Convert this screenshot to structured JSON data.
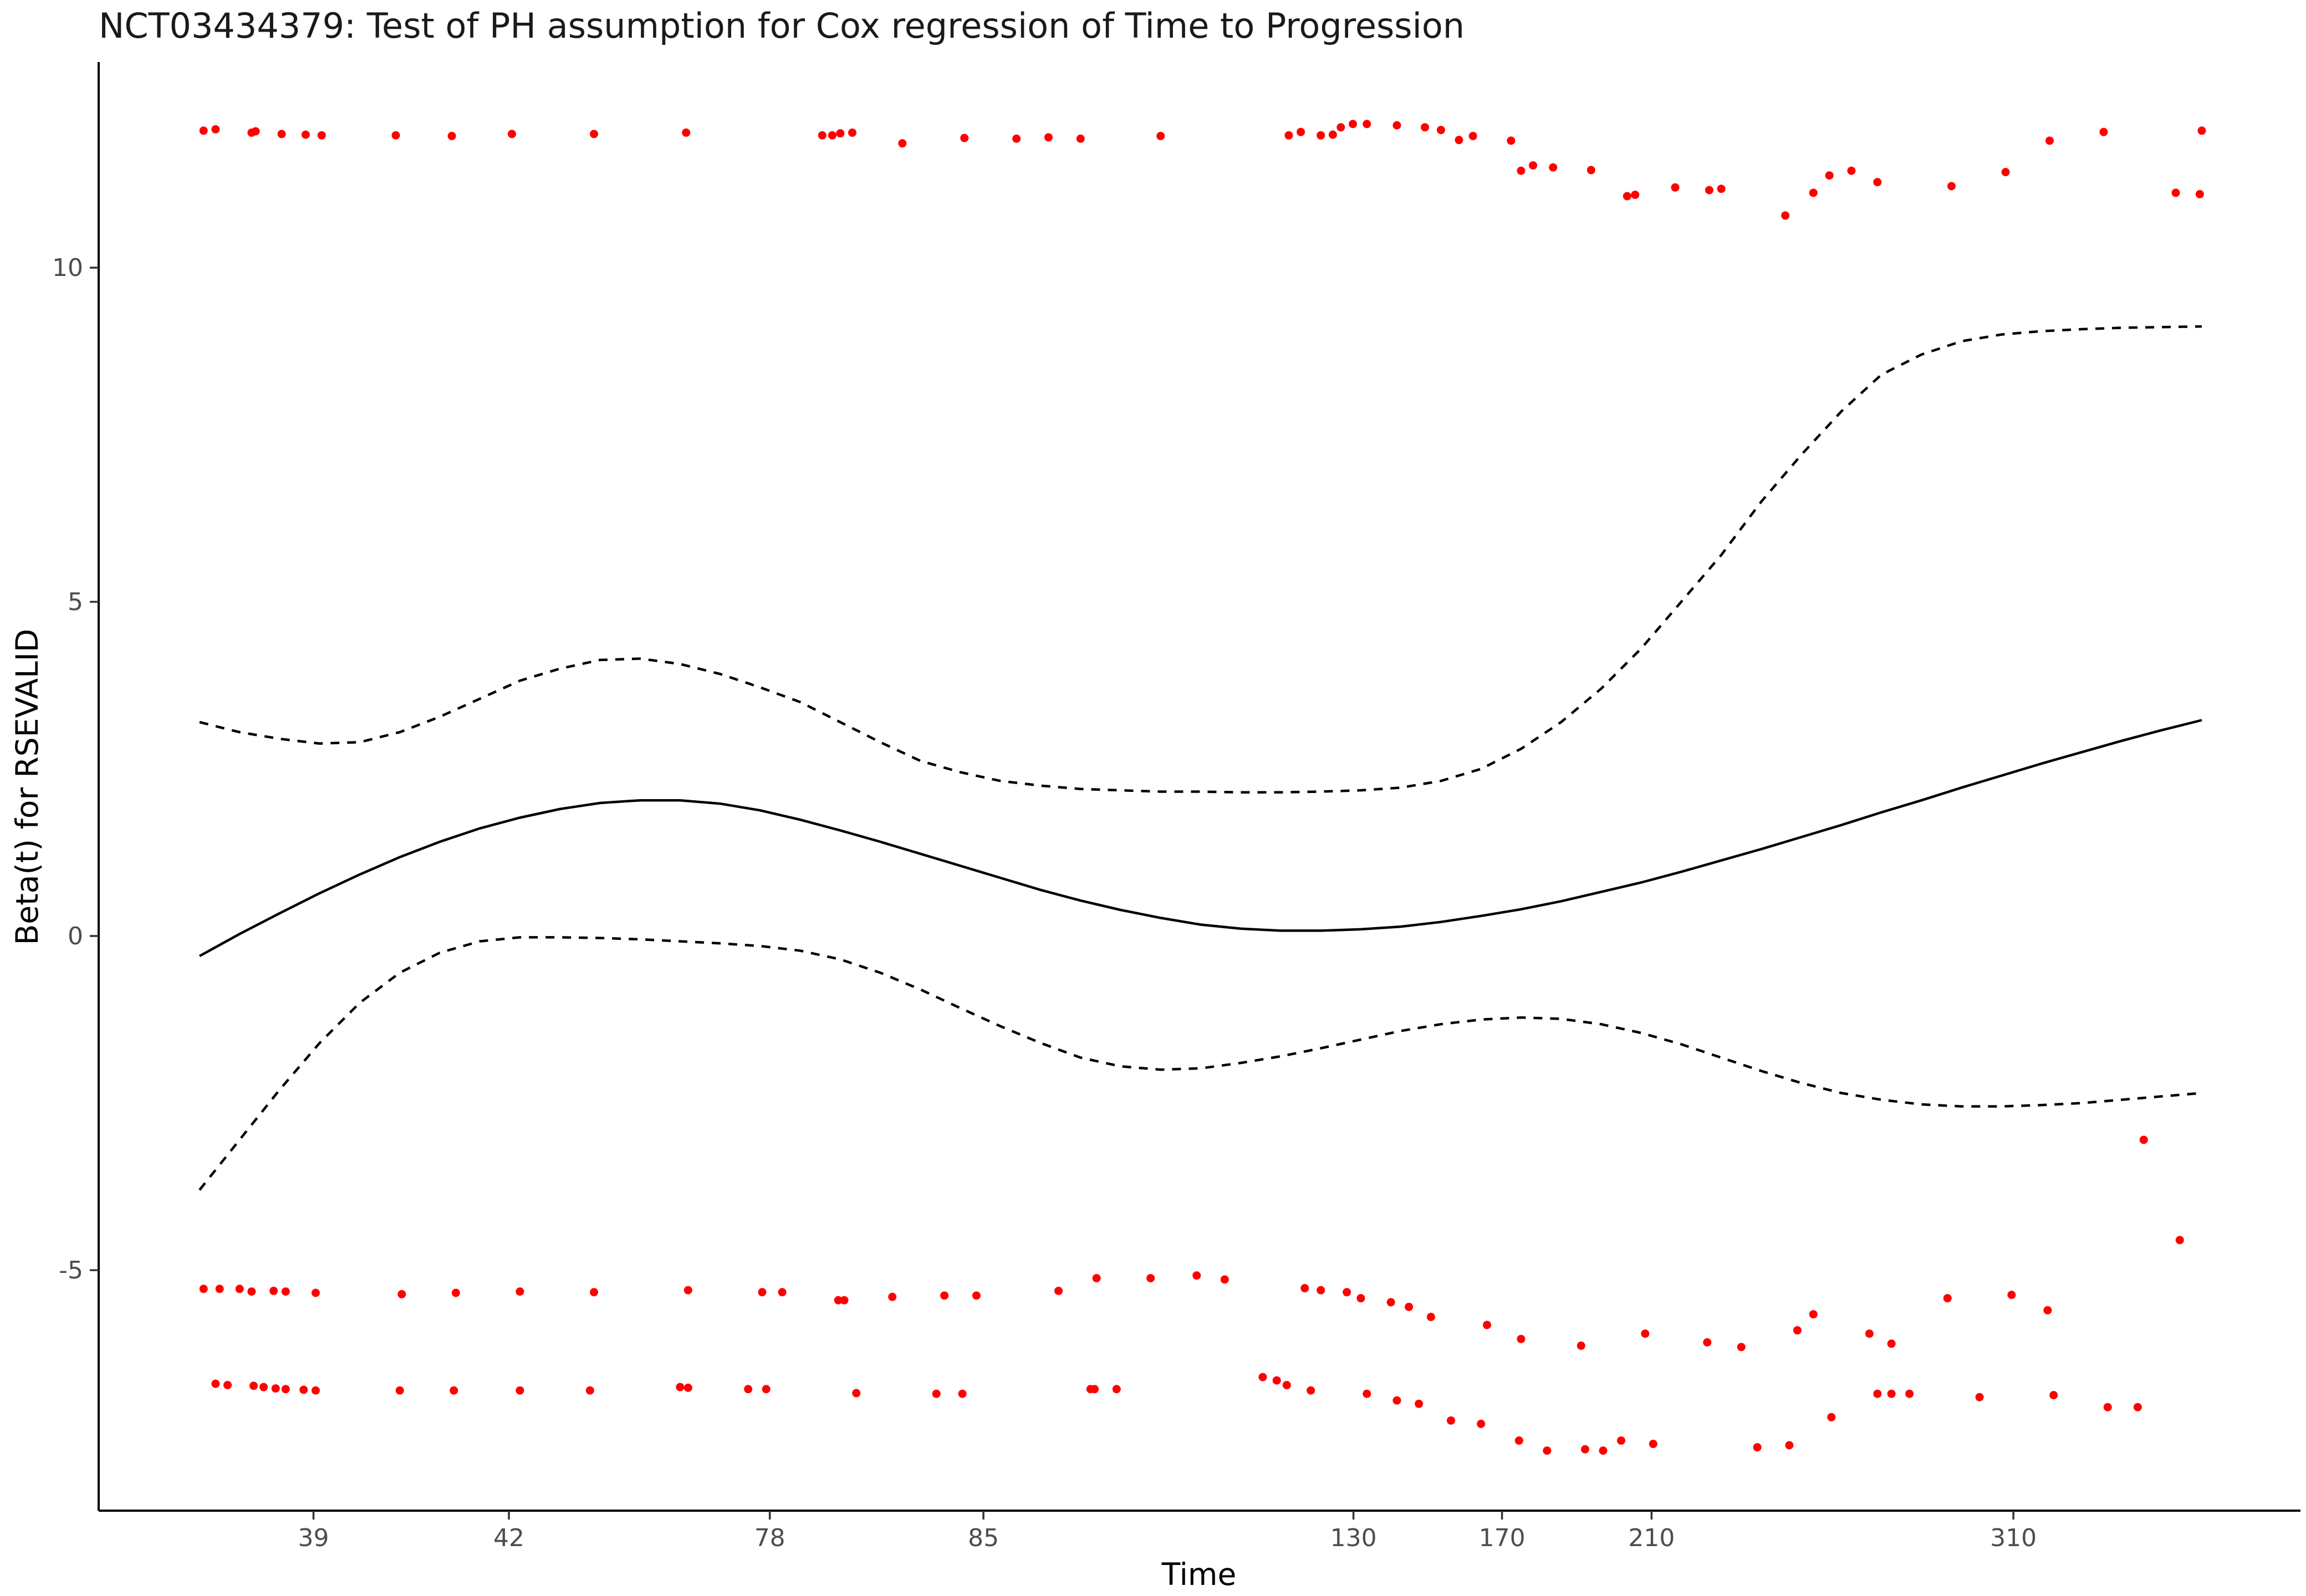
{
  "chart_data": {
    "type": "scatter",
    "title": "NCT03434379: Test of PH assumption for Cox regression of Time to Progression",
    "xlabel": "Time",
    "ylabel": "Beta(t) for RSEVALID",
    "x_ticks": [
      "39",
      "42",
      "78",
      "85",
      "130",
      "170",
      "210",
      "310"
    ],
    "y_ticks": [
      10,
      5,
      0,
      -5
    ],
    "xlim": [
      0,
      100
    ],
    "ylim": [
      -8.5,
      13.5
    ],
    "grid": false,
    "legend": "none",
    "colors": {
      "points": "#ff0000",
      "lines": "#000000"
    },
    "x_ticks_pos": [
      5.69,
      15.45,
      28.48,
      39.15,
      57.63,
      65.05,
      72.52,
      90.59
    ],
    "series": [
      {
        "style": "solid",
        "x": [
          0,
          2,
          4,
          6,
          8,
          10,
          12,
          14,
          16,
          18,
          20,
          22,
          24,
          26,
          28,
          30,
          32,
          34,
          36,
          38,
          40,
          42,
          44,
          46,
          48,
          50,
          52,
          54,
          56,
          58,
          60,
          62,
          64,
          66,
          68,
          70,
          72,
          74,
          76,
          78,
          80,
          82,
          84,
          86,
          88,
          90,
          92,
          94,
          96,
          98,
          100
        ],
        "y": [
          -0.3,
          0.03,
          0.34,
          0.64,
          0.92,
          1.18,
          1.41,
          1.61,
          1.77,
          1.9,
          1.99,
          2.03,
          2.03,
          1.98,
          1.88,
          1.74,
          1.58,
          1.41,
          1.23,
          1.05,
          0.87,
          0.69,
          0.53,
          0.39,
          0.27,
          0.17,
          0.11,
          0.08,
          0.08,
          0.1,
          0.14,
          0.21,
          0.3,
          0.4,
          0.52,
          0.66,
          0.8,
          0.96,
          1.13,
          1.3,
          1.48,
          1.66,
          1.85,
          2.03,
          2.22,
          2.4,
          2.58,
          2.75,
          2.92,
          3.08,
          3.23
        ]
      },
      {
        "style": "dashed",
        "x": [
          0,
          2,
          4,
          6,
          8,
          10,
          12,
          14,
          16,
          18,
          20,
          22,
          24,
          26,
          28,
          30,
          32,
          34,
          36,
          38,
          40,
          42,
          44,
          46,
          48,
          50,
          52,
          54,
          56,
          58,
          60,
          62,
          64,
          66,
          68,
          70,
          72,
          74,
          76,
          78,
          80,
          82,
          84,
          86,
          88,
          90,
          92,
          94,
          96,
          98,
          100
        ],
        "y": [
          3.2,
          3.05,
          2.95,
          2.88,
          2.9,
          3.05,
          3.28,
          3.55,
          3.82,
          4.0,
          4.13,
          4.15,
          4.07,
          3.92,
          3.72,
          3.5,
          3.2,
          2.9,
          2.62,
          2.45,
          2.32,
          2.25,
          2.2,
          2.18,
          2.16,
          2.16,
          2.15,
          2.15,
          2.16,
          2.18,
          2.22,
          2.32,
          2.5,
          2.8,
          3.2,
          3.7,
          4.3,
          5.0,
          5.7,
          6.5,
          7.2,
          7.85,
          8.4,
          8.7,
          8.9,
          9.0,
          9.05,
          9.08,
          9.1,
          9.11,
          9.12
        ]
      },
      {
        "style": "dashed",
        "x": [
          0,
          2,
          4,
          6,
          8,
          10,
          12,
          14,
          16,
          18,
          20,
          22,
          24,
          26,
          28,
          30,
          32,
          34,
          36,
          38,
          40,
          42,
          44,
          46,
          48,
          50,
          52,
          54,
          56,
          58,
          60,
          62,
          64,
          66,
          68,
          70,
          72,
          74,
          76,
          78,
          80,
          82,
          84,
          86,
          88,
          90,
          92,
          94,
          96,
          98,
          100
        ],
        "y": [
          -3.8,
          -3.05,
          -2.3,
          -1.6,
          -1.0,
          -0.55,
          -0.25,
          -0.08,
          -0.02,
          -0.02,
          -0.03,
          -0.05,
          -0.08,
          -0.11,
          -0.15,
          -0.22,
          -0.35,
          -0.55,
          -0.8,
          -1.08,
          -1.35,
          -1.6,
          -1.82,
          -1.95,
          -2.0,
          -1.98,
          -1.9,
          -1.8,
          -1.68,
          -1.55,
          -1.42,
          -1.32,
          -1.25,
          -1.22,
          -1.24,
          -1.32,
          -1.45,
          -1.62,
          -1.82,
          -2.02,
          -2.2,
          -2.35,
          -2.45,
          -2.52,
          -2.55,
          -2.55,
          -2.53,
          -2.5,
          -2.45,
          -2.4,
          -2.35
        ]
      },
      {
        "style": "points",
        "x": [
          0.2,
          0.8,
          2.6,
          2.8,
          4.1,
          5.3,
          6.1,
          9.8,
          12.6,
          15.6,
          19.7,
          24.3,
          31.1,
          31.6,
          32.0,
          32.6,
          35.1,
          38.2,
          40.8,
          42.4,
          44.0,
          48.0,
          54.4,
          55.0,
          56.0,
          56.6,
          57.0,
          57.6,
          58.3,
          59.8,
          61.2,
          62.0,
          62.9,
          63.6,
          65.5,
          66.0,
          66.6,
          67.6,
          69.5,
          71.3,
          71.7,
          73.7,
          75.4,
          76.0,
          79.2,
          80.6,
          81.4,
          82.5,
          83.8,
          87.5,
          90.2,
          92.4,
          95.1,
          98.7,
          99.9,
          100.0
        ],
        "y": [
          12.05,
          12.07,
          12.02,
          12.04,
          12.0,
          11.99,
          11.98,
          11.98,
          11.97,
          12.0,
          12.0,
          12.02,
          11.98,
          11.98,
          12.01,
          12.02,
          11.86,
          11.94,
          11.93,
          11.95,
          11.93,
          11.97,
          11.98,
          12.03,
          11.98,
          11.99,
          12.1,
          12.15,
          12.15,
          12.13,
          12.1,
          12.06,
          11.91,
          11.97,
          11.9,
          11.45,
          11.53,
          11.5,
          11.46,
          11.07,
          11.09,
          11.2,
          11.16,
          11.18,
          10.78,
          11.12,
          11.38,
          11.45,
          11.28,
          11.22,
          11.43,
          11.9,
          12.03,
          11.12,
          11.1,
          12.05
        ]
      },
      {
        "style": "points",
        "x": [
          0.2,
          1.0,
          2.0,
          2.6,
          3.7,
          4.3,
          5.8,
          10.1,
          12.8,
          16.0,
          19.7,
          24.4,
          28.1,
          29.1,
          31.9,
          32.2,
          34.6,
          37.2,
          38.8,
          42.9,
          44.8,
          47.5,
          49.8,
          51.2,
          55.2,
          56.0,
          57.3,
          58.0,
          59.5,
          60.4,
          61.5,
          64.3,
          66.0,
          69.0,
          72.2,
          75.3,
          77.0,
          79.8,
          80.6,
          83.4,
          84.5,
          87.3,
          90.5,
          92.3,
          95.3,
          97.1,
          98.9
        ],
        "y": [
          -5.28,
          -5.28,
          -5.28,
          -5.32,
          -5.31,
          -5.32,
          -5.34,
          -5.36,
          -5.34,
          -5.32,
          -5.33,
          -5.3,
          -5.33,
          -5.33,
          -5.45,
          -5.45,
          -5.4,
          -5.38,
          -5.38,
          -5.31,
          -5.12,
          -5.12,
          -5.08,
          -5.14,
          -5.27,
          -5.3,
          -5.33,
          -5.42,
          -5.48,
          -5.55,
          -5.7,
          -5.82,
          -6.03,
          -6.13,
          -5.95,
          -6.08,
          -6.15,
          -5.9,
          -5.66,
          -5.95,
          -6.1,
          -5.42,
          -5.37,
          -5.6,
          -7.05,
          -3.05,
          -4.55
        ]
      },
      {
        "style": "points",
        "x": [
          0.8,
          1.4,
          2.7,
          3.2,
          3.8,
          4.3,
          5.2,
          5.8,
          10.0,
          12.7,
          16.0,
          19.5,
          24.0,
          24.4,
          27.4,
          28.3,
          32.8,
          36.8,
          38.1,
          44.5,
          44.7,
          45.8,
          53.1,
          53.8,
          54.3,
          55.5,
          58.3,
          59.8,
          60.9,
          62.5,
          64.0,
          65.9,
          67.3,
          69.2,
          70.1,
          71.0,
          72.6,
          77.8,
          79.4,
          81.5,
          83.8,
          84.5,
          85.4,
          88.9,
          92.6,
          96.8
        ],
        "y": [
          -6.7,
          -6.72,
          -6.73,
          -6.75,
          -6.77,
          -6.78,
          -6.79,
          -6.8,
          -6.8,
          -6.8,
          -6.8,
          -6.8,
          -6.75,
          -6.76,
          -6.78,
          -6.78,
          -6.84,
          -6.85,
          -6.85,
          -6.78,
          -6.78,
          -6.78,
          -6.6,
          -6.65,
          -6.72,
          -6.8,
          -6.85,
          -6.95,
          -7.0,
          -7.25,
          -7.3,
          -7.55,
          -7.7,
          -7.68,
          -7.7,
          -7.55,
          -7.6,
          -7.65,
          -7.62,
          -7.2,
          -6.85,
          -6.85,
          -6.85,
          -6.9,
          -6.87,
          -7.05
        ]
      }
    ]
  }
}
